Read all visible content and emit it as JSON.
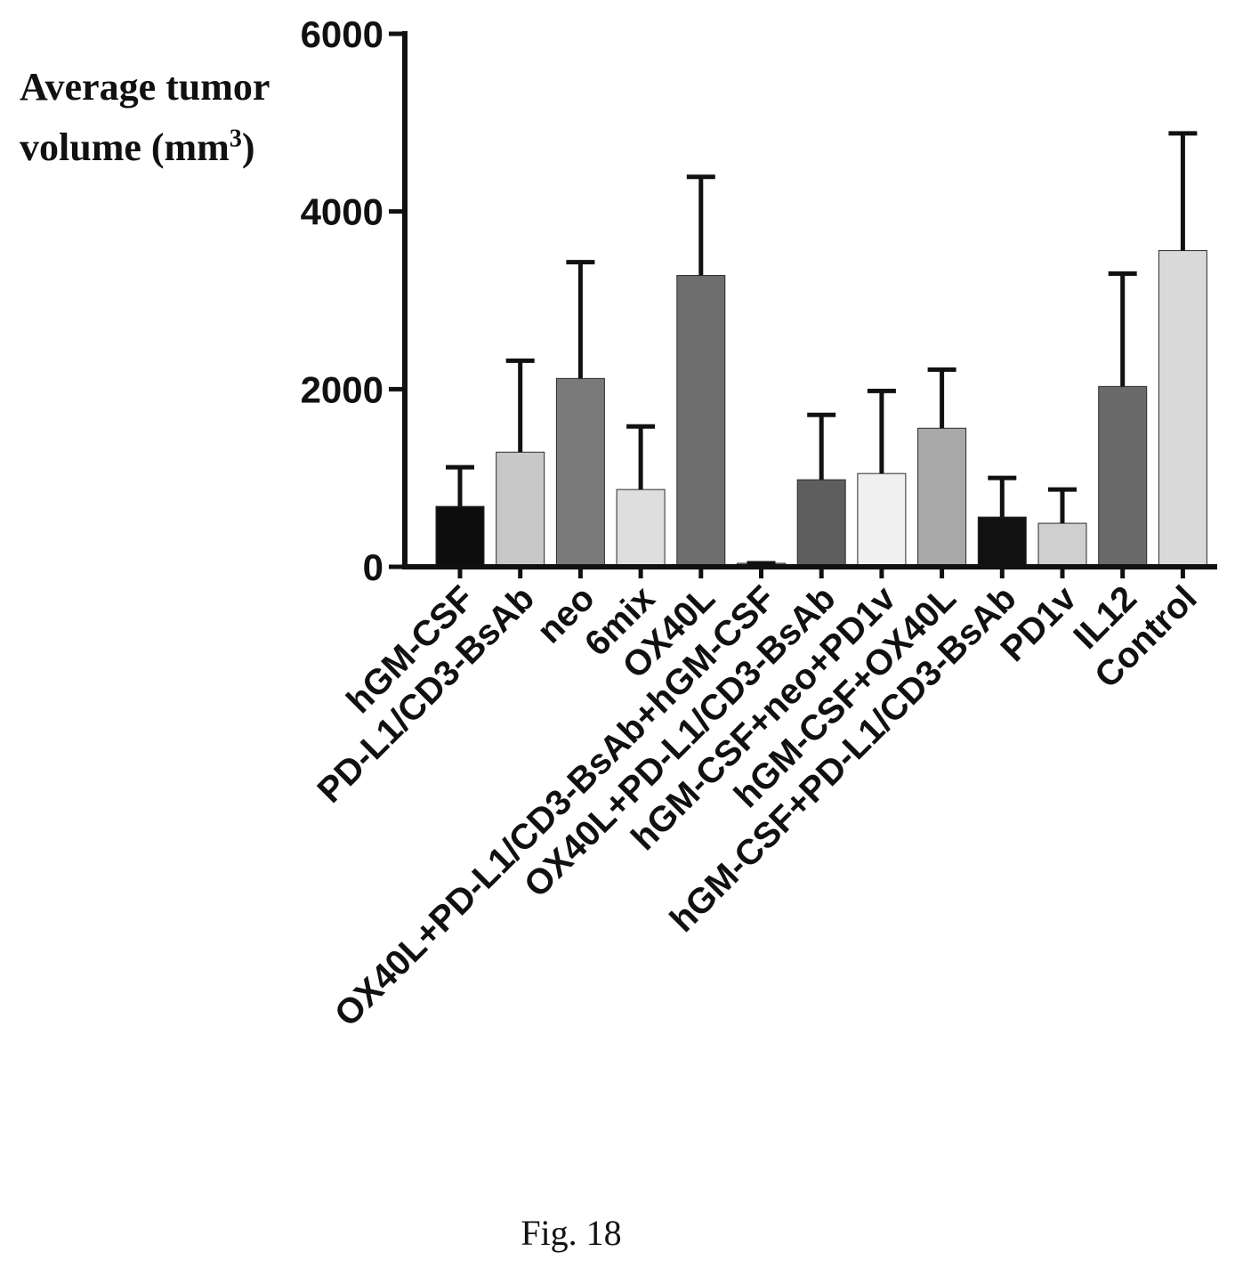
{
  "chart_data": {
    "type": "bar",
    "ylabel_line1": "Average tumor",
    "ylabel_line2": "volume  (mm",
    "ylabel_sup": "3",
    "ylabel_close": ")",
    "ylim": [
      0,
      6000
    ],
    "yticks": [
      0,
      2000,
      4000,
      6000
    ],
    "grid": false,
    "categories": [
      "hGM-CSF",
      "PD-L1/CD3-BsAb",
      "neo",
      "6mix",
      "OX40L",
      "OX40L+PD-L1/CD3-BsAb+hGM-CSF",
      "OX40L+PD-L1/CD3-BsAb",
      "hGM-CSF+neo+PD1v",
      "hGM-CSF+OX40L",
      "hGM-CSF+PD-L1/CD3-BsAb",
      "PD1v",
      "IL12",
      "Control"
    ],
    "values": [
      680,
      1290,
      2120,
      870,
      3280,
      40,
      980,
      1050,
      1560,
      560,
      490,
      2030,
      3560
    ],
    "error": [
      1120,
      2320,
      3430,
      1580,
      4390,
      40,
      1710,
      1980,
      2220,
      1000,
      870,
      3300,
      4880
    ],
    "bar_colors": [
      "#0d0d0d",
      "#c8c8c8",
      "#7a7a7a",
      "#dedede",
      "#6e6e6e",
      "#9a9a9a",
      "#5e5e5e",
      "#f0f0f0",
      "#a9a9a9",
      "#111111",
      "#cfcfcf",
      "#6a6a6a",
      "#d9d9d9"
    ]
  },
  "caption": "Fig. 18"
}
